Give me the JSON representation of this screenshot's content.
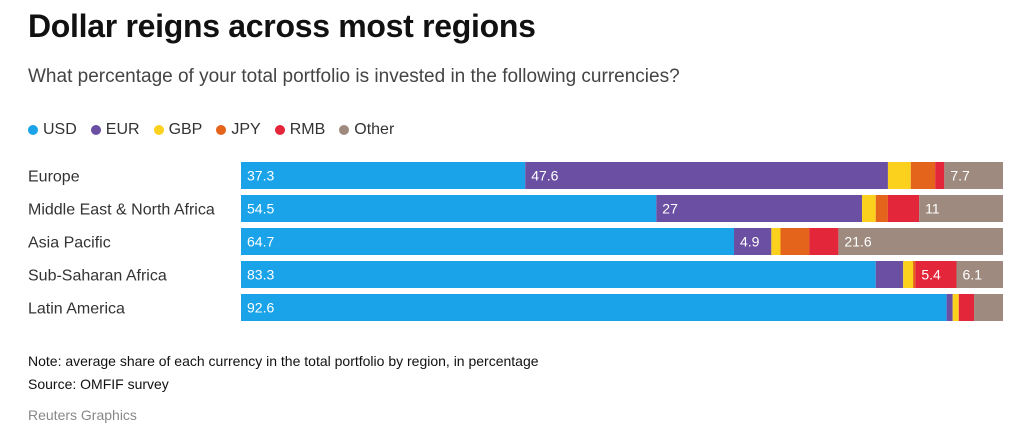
{
  "header": {
    "title": "Dollar reigns across most regions",
    "subtitle": "What percentage of your total portfolio is invested in the following currencies?"
  },
  "footer": {
    "note": "Note: average share of each currency in the total portfolio by region, in percentage",
    "source": "Source: OMFIF survey",
    "credit": "Reuters Graphics"
  },
  "chart_data": {
    "type": "bar",
    "orientation": "horizontal",
    "stacked": true,
    "title": "Dollar reigns across most regions",
    "subtitle": "What percentage of your total portfolio is invested in the following currencies?",
    "xlabel": "",
    "ylabel": "",
    "xlim": [
      0,
      100
    ],
    "grid": false,
    "legend_position": "top-left",
    "categories": [
      "Europe",
      "Middle East & North Africa",
      "Asia Pacific",
      "Sub-Saharan Africa",
      "Latin America"
    ],
    "series": [
      {
        "name": "USD",
        "color": "#1aa3e8",
        "values": [
          37.3,
          54.5,
          64.7,
          83.3,
          92.6
        ],
        "labels": [
          "37.3",
          "54.5",
          "64.7",
          "83.3",
          "92.6"
        ]
      },
      {
        "name": "EUR",
        "color": "#6b4fa3",
        "values": [
          47.6,
          27,
          4.9,
          3.6,
          0.8
        ],
        "labels": [
          "47.6",
          "27",
          "4.9",
          "",
          ""
        ]
      },
      {
        "name": "GBP",
        "color": "#fcd11d",
        "values": [
          3.0,
          1.8,
          1.2,
          1.3,
          0.8
        ],
        "labels": [
          "",
          "",
          "",
          "",
          ""
        ]
      },
      {
        "name": "JPY",
        "color": "#e5641c",
        "values": [
          3.2,
          1.6,
          3.8,
          0.3,
          0.0
        ],
        "labels": [
          "",
          "",
          "",
          "",
          ""
        ]
      },
      {
        "name": "RMB",
        "color": "#e3263a",
        "values": [
          1.2,
          4.1,
          3.8,
          5.4,
          2.0
        ],
        "labels": [
          "",
          "",
          "",
          "5.4",
          ""
        ]
      },
      {
        "name": "Other",
        "color": "#9e8a7e",
        "values": [
          7.7,
          11,
          21.6,
          6.1,
          3.8
        ],
        "labels": [
          "7.7",
          "11",
          "21.6",
          "6.1",
          ""
        ]
      }
    ]
  }
}
